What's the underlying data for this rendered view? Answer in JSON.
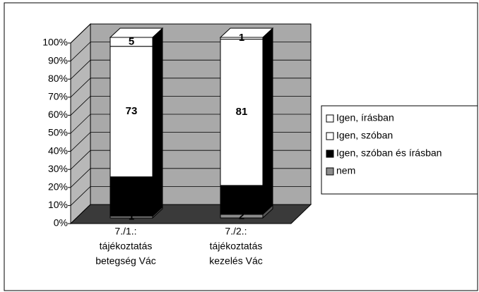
{
  "chart_data": {
    "type": "bar",
    "stacking": "percent",
    "categories": [
      [
        "7./1.:",
        "tájékoztatás",
        "betegség  Vác"
      ],
      [
        "7./2.:",
        "tájékoztatás",
        "kezelés Vác"
      ]
    ],
    "series": [
      {
        "name": "nem",
        "color": "#8c8c8c",
        "values": [
          1,
          2
        ]
      },
      {
        "name": "Igen, szóban és írásban",
        "color": "#000000",
        "values": [
          22,
          16
        ]
      },
      {
        "name": "Igen, szóban",
        "color": "#ffffff",
        "values": [
          73,
          81
        ]
      },
      {
        "name": "Igen, írásban",
        "color": "#ffffff",
        "values": [
          5,
          1
        ]
      }
    ],
    "ylim": [
      0,
      100
    ],
    "yticks": [
      {
        "value": 0,
        "label": "0%"
      },
      {
        "value": 10,
        "label": "10%"
      },
      {
        "value": 20,
        "label": "20%"
      },
      {
        "value": 30,
        "label": "30%"
      },
      {
        "value": 40,
        "label": "40%"
      },
      {
        "value": 50,
        "label": "50%"
      },
      {
        "value": 60,
        "label": "60%"
      },
      {
        "value": 70,
        "label": "70%"
      },
      {
        "value": 80,
        "label": "80%"
      },
      {
        "value": 90,
        "label": "90%"
      },
      {
        "value": 100,
        "label": "100%"
      }
    ],
    "grid": true,
    "legend": "right"
  }
}
